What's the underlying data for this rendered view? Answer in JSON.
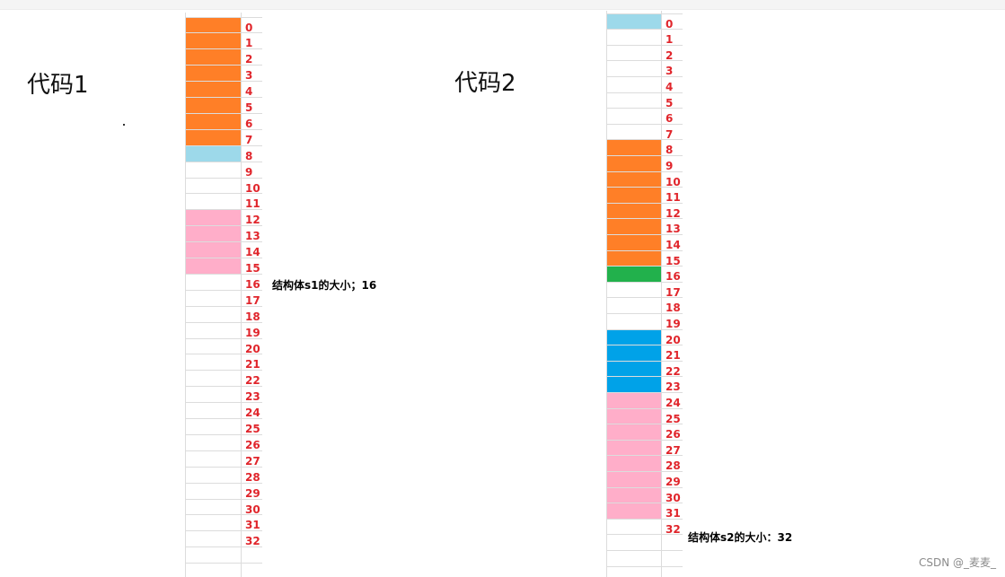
{
  "colors": {
    "orange": "#ff7f27",
    "light_blue": "#9dd9ea",
    "pink": "#ffaec9",
    "green": "#22b14c",
    "blue": "#00a2e8",
    "index_red": "#e0252b"
  },
  "watermark": "CSDN @_麦麦_",
  "panels": [
    {
      "id": "code1",
      "title": "代码1",
      "size_label": "结构体s1的大小；16",
      "cells": [
        {
          "index": 0,
          "label": "0",
          "color": "orange"
        },
        {
          "index": 1,
          "label": "1",
          "color": "orange"
        },
        {
          "index": 2,
          "label": "2",
          "color": "orange"
        },
        {
          "index": 3,
          "label": "3",
          "color": "orange"
        },
        {
          "index": 4,
          "label": "4",
          "color": "orange"
        },
        {
          "index": 5,
          "label": "5",
          "color": "orange"
        },
        {
          "index": 6,
          "label": "6",
          "color": "orange"
        },
        {
          "index": 7,
          "label": "7",
          "color": "orange"
        },
        {
          "index": 8,
          "label": "8",
          "color": "light_blue"
        },
        {
          "index": 9,
          "label": "9",
          "color": ""
        },
        {
          "index": 10,
          "label": "10",
          "color": ""
        },
        {
          "index": 11,
          "label": "11",
          "color": ""
        },
        {
          "index": 12,
          "label": "12",
          "color": "pink"
        },
        {
          "index": 13,
          "label": "13",
          "color": "pink"
        },
        {
          "index": 14,
          "label": "14",
          "color": "pink"
        },
        {
          "index": 15,
          "label": "15",
          "color": "pink"
        },
        {
          "index": 16,
          "label": "16",
          "color": ""
        },
        {
          "index": 17,
          "label": "17",
          "color": ""
        },
        {
          "index": 18,
          "label": "18",
          "color": ""
        },
        {
          "index": 19,
          "label": "19",
          "color": ""
        },
        {
          "index": 20,
          "label": "20",
          "color": ""
        },
        {
          "index": 21,
          "label": "21",
          "color": ""
        },
        {
          "index": 22,
          "label": "22",
          "color": ""
        },
        {
          "index": 23,
          "label": "23",
          "color": ""
        },
        {
          "index": 24,
          "label": "24",
          "color": ""
        },
        {
          "index": 25,
          "label": "25",
          "color": ""
        },
        {
          "index": 26,
          "label": "26",
          "color": ""
        },
        {
          "index": 27,
          "label": "27",
          "color": ""
        },
        {
          "index": 28,
          "label": "28",
          "color": ""
        },
        {
          "index": 29,
          "label": "29",
          "color": ""
        },
        {
          "index": 30,
          "label": "30",
          "color": ""
        },
        {
          "index": 31,
          "label": "31",
          "color": ""
        },
        {
          "index": 32,
          "label": "32",
          "color": ""
        }
      ]
    },
    {
      "id": "code2",
      "title": "代码2",
      "size_label": "结构体s2的大小：32",
      "cells": [
        {
          "index": 0,
          "label": "0",
          "color": "light_blue"
        },
        {
          "index": 1,
          "label": "1",
          "color": ""
        },
        {
          "index": 2,
          "label": "2",
          "color": ""
        },
        {
          "index": 3,
          "label": "3",
          "color": ""
        },
        {
          "index": 4,
          "label": "4",
          "color": ""
        },
        {
          "index": 5,
          "label": "5",
          "color": ""
        },
        {
          "index": 6,
          "label": "6",
          "color": ""
        },
        {
          "index": 7,
          "label": "7",
          "color": ""
        },
        {
          "index": 8,
          "label": "8",
          "color": "orange"
        },
        {
          "index": 9,
          "label": "9",
          "color": "orange"
        },
        {
          "index": 10,
          "label": "10",
          "color": "orange"
        },
        {
          "index": 11,
          "label": "11",
          "color": "orange"
        },
        {
          "index": 12,
          "label": "12",
          "color": "orange"
        },
        {
          "index": 13,
          "label": "13",
          "color": "orange"
        },
        {
          "index": 14,
          "label": "14",
          "color": "orange"
        },
        {
          "index": 15,
          "label": "15",
          "color": "orange"
        },
        {
          "index": 16,
          "label": "16",
          "color": "green"
        },
        {
          "index": 17,
          "label": "17",
          "color": ""
        },
        {
          "index": 18,
          "label": "18",
          "color": ""
        },
        {
          "index": 19,
          "label": "19",
          "color": ""
        },
        {
          "index": 20,
          "label": "20",
          "color": "blue"
        },
        {
          "index": 21,
          "label": "21",
          "color": "blue"
        },
        {
          "index": 22,
          "label": "22",
          "color": "blue"
        },
        {
          "index": 23,
          "label": "23",
          "color": "blue"
        },
        {
          "index": 24,
          "label": "24",
          "color": "pink"
        },
        {
          "index": 25,
          "label": "25",
          "color": "pink"
        },
        {
          "index": 26,
          "label": "26",
          "color": "pink"
        },
        {
          "index": 27,
          "label": "27",
          "color": "pink"
        },
        {
          "index": 28,
          "label": "28",
          "color": "pink"
        },
        {
          "index": 29,
          "label": "29",
          "color": "pink"
        },
        {
          "index": 30,
          "label": "30",
          "color": "pink"
        },
        {
          "index": 31,
          "label": "31",
          "color": "pink"
        },
        {
          "index": 32,
          "label": "32",
          "color": ""
        }
      ]
    }
  ]
}
